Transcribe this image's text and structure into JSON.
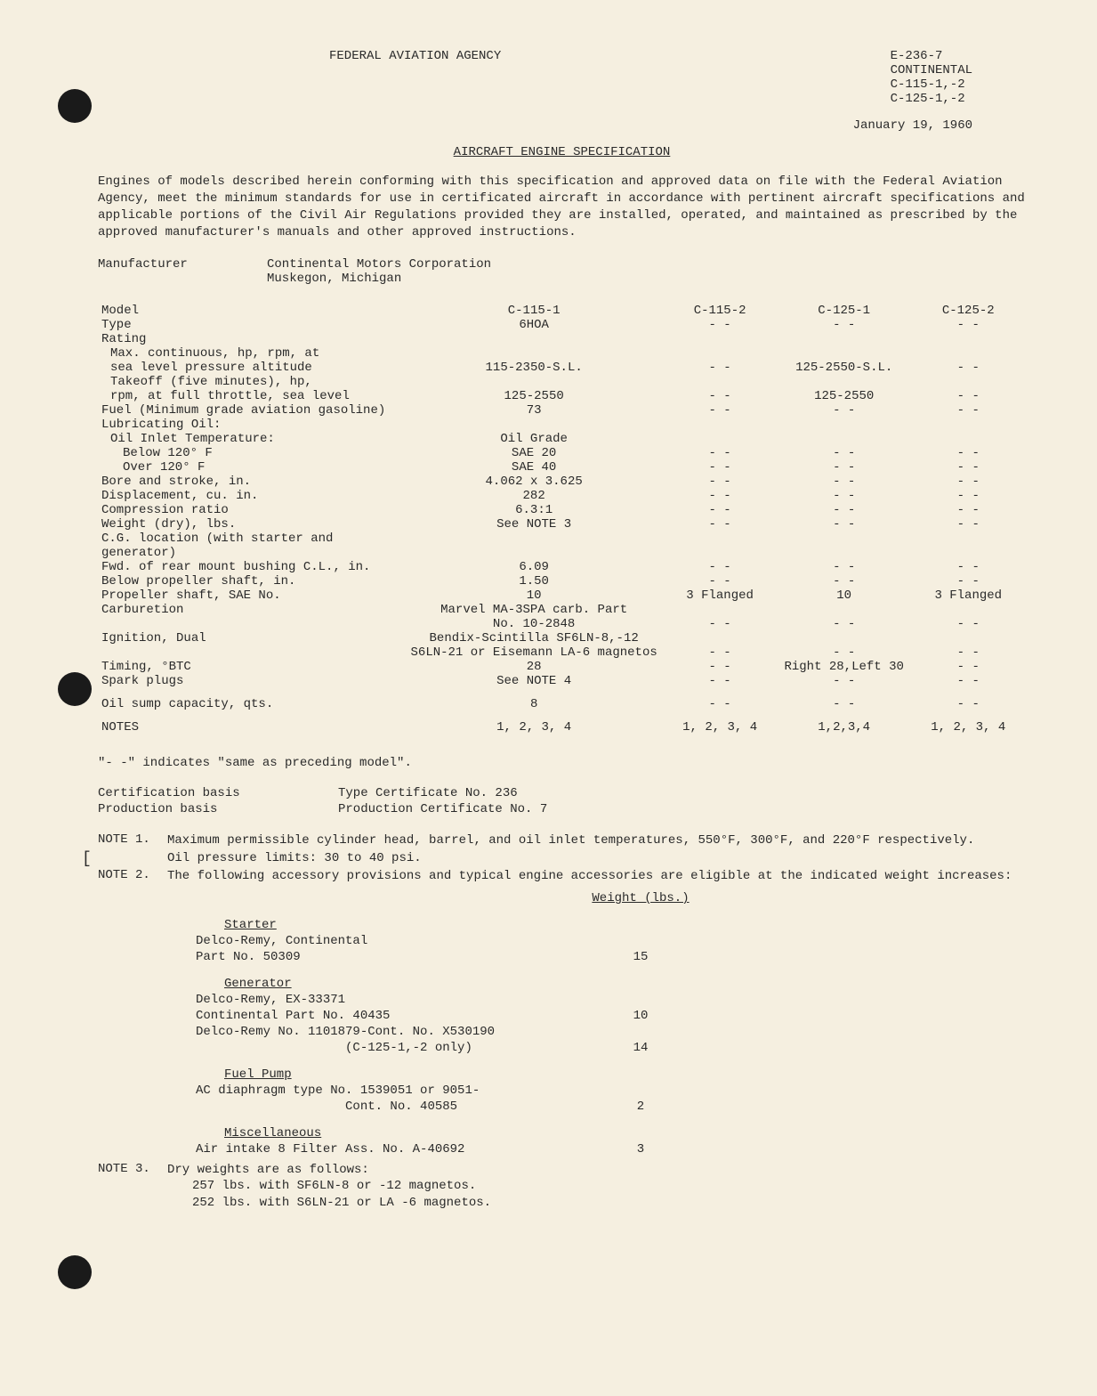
{
  "header": {
    "agency": "FEDERAL AVIATION AGENCY",
    "doc_id_lines": [
      "E-236-7",
      "CONTINENTAL",
      "C-115-1,-2",
      "C-125-1,-2"
    ],
    "date": "January 19, 1960",
    "title": "AIRCRAFT ENGINE SPECIFICATION"
  },
  "intro": "Engines of models described herein conforming with this specification and approved data on file with the Federal Aviation Agency, meet the minimum standards for use in certificated aircraft in accordance with pertinent aircraft specifications and applicable portions of the Civil Air Regulations provided they are installed, operated, and maintained as prescribed by the approved manufacturer's manuals and other approved instructions.",
  "manufacturer": {
    "label": "Manufacturer",
    "name": "Continental Motors Corporation",
    "location": "Muskegon, Michigan"
  },
  "spec_rows": [
    {
      "label": "Model",
      "v1": "C-115-1",
      "v2": "C-115-2",
      "v3": "C-125-1",
      "v4": "C-125-2"
    },
    {
      "label": "Type",
      "v1": "6HOA",
      "v2": "- -",
      "v3": "- -",
      "v4": "- -"
    },
    {
      "label": "Rating",
      "v1": "",
      "v2": "",
      "v3": "",
      "v4": ""
    },
    {
      "label": "Max. continuous, hp, rpm, at",
      "indent": 1,
      "v1": "",
      "v2": "",
      "v3": "",
      "v4": ""
    },
    {
      "label": "sea level pressure altitude",
      "indent": 1,
      "v1": "115-2350-S.L.",
      "v2": "- -",
      "v3": "125-2550-S.L.",
      "v4": "- -"
    },
    {
      "label": "Takeoff (five minutes), hp,",
      "indent": 1,
      "v1": "",
      "v2": "",
      "v3": "",
      "v4": ""
    },
    {
      "label": "rpm, at full throttle, sea level",
      "indent": 1,
      "v1": "125-2550",
      "v2": "- -",
      "v3": "125-2550",
      "v4": "- -"
    },
    {
      "label": "Fuel (Minimum grade aviation gasoline)",
      "v1": "73",
      "v2": "- -",
      "v3": "- -",
      "v4": "- -"
    },
    {
      "label": "Lubricating Oil:",
      "v1": "",
      "v2": "",
      "v3": "",
      "v4": ""
    },
    {
      "label": "Oil Inlet Temperature:",
      "indent": 1,
      "v1": "Oil Grade",
      "v2": "",
      "v3": "",
      "v4": ""
    },
    {
      "label": "Below 120° F",
      "indent": 2,
      "v1": "SAE 20",
      "v2": "- -",
      "v3": "- -",
      "v4": "- -"
    },
    {
      "label": "Over  120° F",
      "indent": 2,
      "v1": "SAE 40",
      "v2": "- -",
      "v3": "- -",
      "v4": "- -"
    },
    {
      "label": "Bore and stroke, in.",
      "v1": "4.062 x 3.625",
      "v2": "- -",
      "v3": "- -",
      "v4": "- -"
    },
    {
      "label": "Displacement, cu. in.",
      "v1": "282",
      "v2": "- -",
      "v3": "- -",
      "v4": "- -"
    },
    {
      "label": "Compression ratio",
      "v1": "6.3:1",
      "v2": "- -",
      "v3": "- -",
      "v4": "- -"
    },
    {
      "label": "Weight (dry), lbs.",
      "v1": "See NOTE 3",
      "v2": "- -",
      "v3": "- -",
      "v4": "- -"
    },
    {
      "label": "C.G. location (with starter and generator)",
      "v1": "",
      "v2": "",
      "v3": "",
      "v4": ""
    },
    {
      "label": "Fwd. of rear mount bushing C.L., in.",
      "v1": "6.09",
      "v2": "- -",
      "v3": "- -",
      "v4": "- -"
    },
    {
      "label": "Below propeller shaft, in.",
      "v1": "1.50",
      "v2": "- -",
      "v3": "- -",
      "v4": "- -"
    },
    {
      "label": "Propeller shaft, SAE No.",
      "v1": "10",
      "v2": "3 Flanged",
      "v3": "10",
      "v4": "3 Flanged"
    },
    {
      "label": "Carburetion",
      "v1": "Marvel MA-3SPA carb. Part",
      "v2": "",
      "v3": "",
      "v4": ""
    },
    {
      "label": "",
      "v1": "No. 10-2848",
      "v2": "- -",
      "v3": "- -",
      "v4": "- -"
    },
    {
      "label": "Ignition, Dual",
      "v1": "Bendix-Scintilla SF6LN-8,-12",
      "v2": "",
      "v3": "",
      "v4": ""
    },
    {
      "label": "",
      "v1": "S6LN-21 or Eisemann LA-6 magnetos",
      "v2": "- -",
      "v3": "- -",
      "v4": "- -"
    },
    {
      "label": "Timing, °BTC",
      "v1": "28",
      "v2": "- -",
      "v3": "Right 28,Left 30",
      "v4": "- -"
    },
    {
      "label": "Spark plugs",
      "v1": "See NOTE 4",
      "v2": "- -",
      "v3": "- -",
      "v4": "- -",
      "pad": true
    },
    {
      "label": "Oil sump capacity, qts.",
      "v1": "8",
      "v2": "- -",
      "v3": "- -",
      "v4": "- -",
      "pad": true
    },
    {
      "label": "NOTES",
      "v1": "1, 2, 3, 4",
      "v2": "1, 2, 3, 4",
      "v3": "1,2,3,4",
      "v4": "1, 2, 3, 4",
      "pad": true
    }
  ],
  "ditto_note": "\"- -\" indicates \"same as preceding model\".",
  "certification": [
    {
      "label": "Certification basis",
      "value": "Type Certificate No. 236"
    },
    {
      "label": "Production basis",
      "value": "Production Certificate No. 7"
    }
  ],
  "notes": {
    "note1": {
      "label": "NOTE 1.",
      "text": "Maximum permissible cylinder head, barrel, and oil inlet temperatures, 550°F, 300°F, and 220°F respectively.",
      "extra": "Oil pressure limits: 30 to 40 psi."
    },
    "note2": {
      "label": "NOTE 2.",
      "text": "The following accessory provisions and typical engine accessories are eligible at the indicated weight increases:"
    },
    "accessories": {
      "headers": {
        "col1": "",
        "col2": "Weight (lbs.)"
      },
      "groups": [
        {
          "title": "Starter",
          "rows": [
            {
              "desc": "Delco-Remy, Continental",
              "wt": ""
            },
            {
              "desc": "Part No. 50309",
              "wt": "15"
            }
          ]
        },
        {
          "title": "Generator",
          "rows": [
            {
              "desc": "Delco-Remy, EX-33371",
              "wt": ""
            },
            {
              "desc": "Continental Part No. 40435",
              "wt": "10"
            },
            {
              "desc": "Delco-Remy No. 1101879-Cont. No. X530190",
              "wt": ""
            },
            {
              "desc": "                    (C-125-1,-2 only)",
              "wt": "14"
            }
          ]
        },
        {
          "title": "Fuel Pump",
          "rows": [
            {
              "desc": "AC diaphragm type No. 1539051 or 9051-",
              "wt": ""
            },
            {
              "desc": "                    Cont. No. 40585",
              "wt": "2"
            }
          ]
        },
        {
          "title": "Miscellaneous",
          "rows": [
            {
              "desc": "Air intake 8 Filter Ass. No. A-40692",
              "wt": "3"
            }
          ]
        }
      ]
    },
    "note3": {
      "label": "NOTE 3.",
      "text": "Dry weights are as follows:",
      "lines": [
        "257 lbs. with SF6LN-8 or -12 magnetos.",
        "252 lbs. with S6LN-21 or LA -6 magnetos."
      ]
    }
  }
}
